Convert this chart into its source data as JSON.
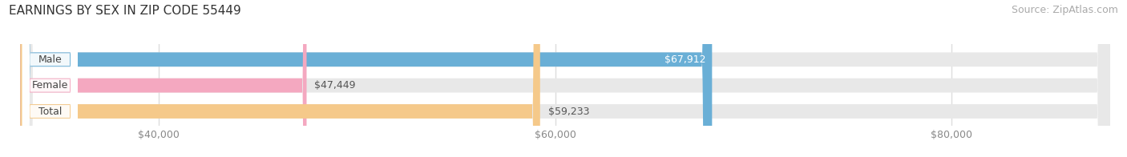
{
  "title": "EARNINGS BY SEX IN ZIP CODE 55449",
  "source": "Source: ZipAtlas.com",
  "categories": [
    "Male",
    "Female",
    "Total"
  ],
  "values": [
    67912,
    47449,
    59233
  ],
  "bar_colors": [
    "#6aafd6",
    "#f4a8c0",
    "#f5c98a"
  ],
  "label_colors": [
    "#ffffff",
    "#555555",
    "#555555"
  ],
  "value_labels": [
    "$67,912",
    "$47,449",
    "$59,233"
  ],
  "xlim_min": 33000,
  "xlim_max": 88000,
  "xtick_values": [
    40000,
    60000,
    80000
  ],
  "xtick_labels": [
    "$40,000",
    "$60,000",
    "$80,000"
  ],
  "background_color": "#ffffff",
  "bar_track_color": "#e8e8e8",
  "bar_height": 0.55,
  "title_fontsize": 11,
  "source_fontsize": 9,
  "label_fontsize": 9,
  "value_fontsize": 9,
  "tick_fontsize": 9,
  "grid_color": "#dddddd"
}
